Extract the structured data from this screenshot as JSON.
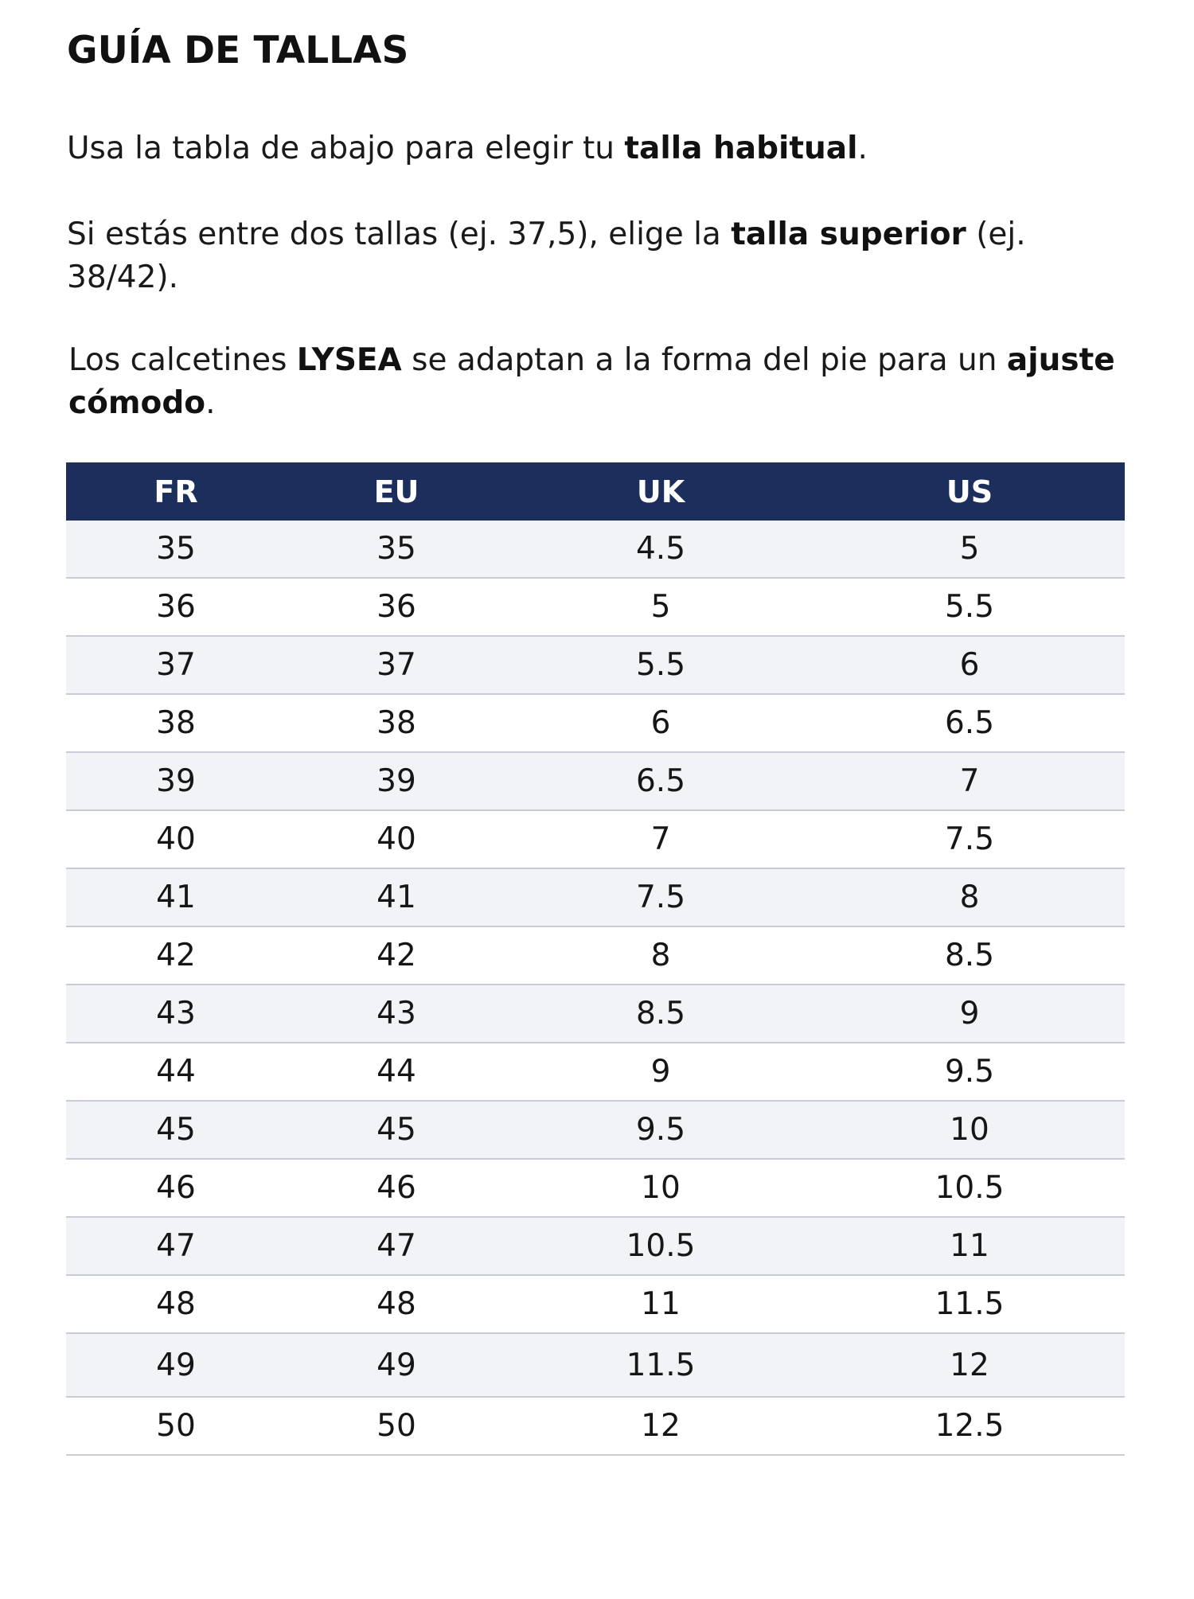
{
  "title": "GUÍA DE TALLAS",
  "paragraphs": {
    "p1": {
      "a": "Usa la tabla de abajo para elegir tu ",
      "b": "talla habitual",
      "c": "."
    },
    "p2": {
      "a": "Si estás entre dos tallas (ej. 37,5), elige la ",
      "b": "talla superior",
      "c": " (ej. 38/42)."
    },
    "p3": {
      "a": "Los calcetines ",
      "b": "LYSEA",
      "c": " se adaptan a la forma del pie para un ",
      "d": "ajuste cómodo",
      "e": "."
    }
  },
  "table": {
    "headers": [
      "FR",
      "EU",
      "UK",
      "US"
    ],
    "header_color": "#1c2f5c",
    "rows": [
      [
        "35",
        "35",
        "4.5",
        "5"
      ],
      [
        "36",
        "36",
        "5",
        "5.5"
      ],
      [
        "37",
        "37",
        "5.5",
        "6"
      ],
      [
        "38",
        "38",
        "6",
        "6.5"
      ],
      [
        "39",
        "39",
        "6.5",
        "7"
      ],
      [
        "40",
        "40",
        "7",
        "7.5"
      ],
      [
        "41",
        "41",
        "7.5",
        "8"
      ],
      [
        "42",
        "42",
        "8",
        "8.5"
      ],
      [
        "43",
        "43",
        "8.5",
        "9"
      ],
      [
        "44",
        "44",
        "9",
        "9.5"
      ],
      [
        "45",
        "45",
        "9.5",
        "10"
      ],
      [
        "46",
        "46",
        "10",
        "10.5"
      ],
      [
        "47",
        "47",
        "10.5",
        "11"
      ],
      [
        "48",
        "48",
        "11",
        "11.5"
      ],
      [
        "49",
        "49",
        "11.5",
        "12"
      ],
      [
        "50",
        "50",
        "12",
        "12.5"
      ]
    ]
  }
}
